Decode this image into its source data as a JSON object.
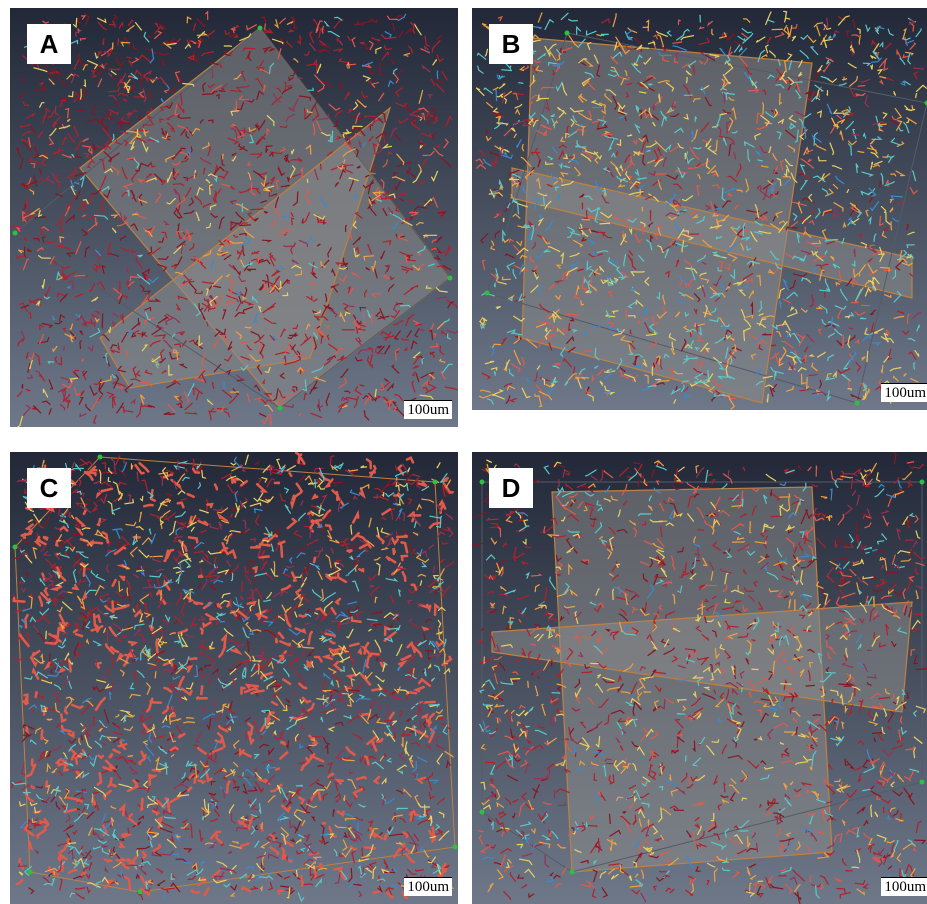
{
  "panels": [
    {
      "label": "A",
      "scale_bar": "100um"
    },
    {
      "label": "B",
      "scale_bar": "100um"
    },
    {
      "label": "C",
      "scale_bar": "100um"
    },
    {
      "label": "D",
      "scale_bar": "100um"
    }
  ]
}
